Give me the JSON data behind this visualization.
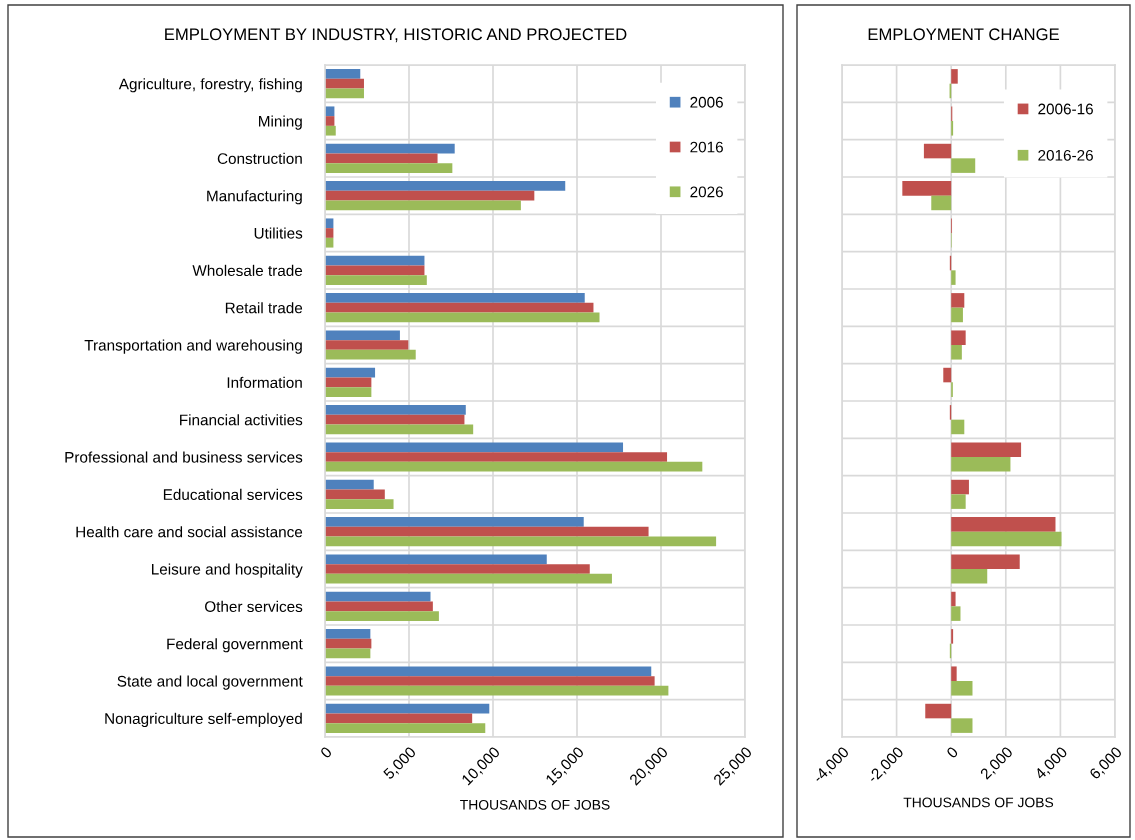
{
  "chart_data": [
    {
      "type": "bar",
      "orientation": "horizontal",
      "title": "EMPLOYMENT BY INDUSTRY, HISTORIC AND PROJECTED",
      "xlabel": "THOUSANDS OF JOBS",
      "categories": [
        "Agriculture, forestry, fishing",
        "Mining",
        "Construction",
        "Manufacturing",
        "Utilities",
        "Wholesale trade",
        "Retail trade",
        "Transportation and warehousing",
        "Information",
        "Financial activities",
        "Professional and business services",
        "Educational services",
        "Health care and social assistance",
        "Leisure and hospitality",
        "Other services",
        "Federal government",
        "State and local government",
        "Nonagriculture self-employed"
      ],
      "series": [
        {
          "name": "2006",
          "color": "#4f81bd",
          "values": [
            2100,
            560,
            7720,
            14300,
            500,
            5920,
            15460,
            4460,
            2980,
            8380,
            17740,
            2900,
            15400,
            13200,
            6280,
            2700,
            19420,
            9780
          ]
        },
        {
          "name": "2016",
          "color": "#c0504d",
          "values": [
            2320,
            560,
            6700,
            12460,
            500,
            5920,
            15980,
            4960,
            2760,
            8300,
            20360,
            3560,
            19260,
            15760,
            6420,
            2760,
            19620,
            8760
          ]
        },
        {
          "name": "2026",
          "color": "#9bbb59",
          "values": [
            2320,
            640,
            7580,
            11660,
            500,
            6060,
            16340,
            5400,
            2760,
            8820,
            22460,
            4080,
            23280,
            17080,
            6780,
            2700,
            20440,
            9540
          ]
        }
      ],
      "xlim": [
        0,
        25000
      ],
      "xticks": [
        0,
        {
          "value": 5000,
          "label": "5,000"
        },
        {
          "value": 10000,
          "label": "10,000"
        },
        {
          "value": 15000,
          "label": "15,000"
        },
        {
          "value": 20000,
          "label": "20,000"
        },
        {
          "value": 25000,
          "label": "25,000"
        }
      ],
      "grid": true,
      "legend": "top right"
    },
    {
      "type": "bar",
      "orientation": "horizontal",
      "title": "EMPLOYMENT CHANGE",
      "xlabel": "THOUSANDS OF JOBS",
      "categories": [
        null,
        null,
        null,
        null,
        null,
        null,
        null,
        null,
        null,
        null,
        null,
        null,
        null,
        null,
        null,
        null,
        null,
        null
      ],
      "series": [
        {
          "name": "2006-16",
          "color": "#c0504d",
          "values": [
            240,
            40,
            -1000,
            -1790,
            30,
            -50,
            480,
            530,
            -290,
            -50,
            2560,
            650,
            3820,
            2510,
            160,
            70,
            200,
            -950
          ]
        },
        {
          "name": "2016-26",
          "color": "#9bbb59",
          "values": [
            -60,
            70,
            880,
            -730,
            20,
            160,
            430,
            390,
            60,
            480,
            2170,
            530,
            4040,
            1320,
            340,
            -50,
            780,
            780
          ]
        }
      ],
      "xlim": [
        -4000,
        6000
      ],
      "xticks": [
        {
          "value": -4000,
          "label": "-4,000"
        },
        {
          "value": -2000,
          "label": "-2,000"
        },
        0,
        {
          "value": 2000,
          "label": "2,000"
        },
        {
          "value": 4000,
          "label": "4,000"
        },
        {
          "value": 6000,
          "label": "6,000"
        }
      ],
      "grid": true,
      "legend": "top right"
    }
  ]
}
